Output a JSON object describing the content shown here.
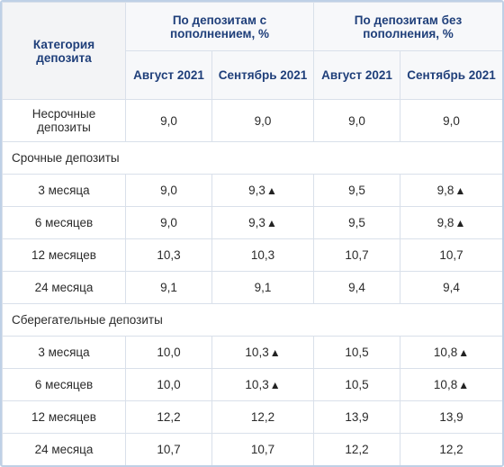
{
  "header": {
    "category": "Категория депозита",
    "group1": "По депозитам с пополнением, %",
    "group2": "По депозитам без пополнения, %",
    "g1_aug": "Август 2021",
    "g1_sep": "Сентябрь 2021",
    "g2_aug": "Август 2021",
    "g2_sep": "Сентябрь 2021"
  },
  "rows": {
    "nonterm": {
      "label": "Несрочные депозиты",
      "v1": "9,0",
      "v2": "9,0",
      "v3": "9,0",
      "v4": "9,0"
    },
    "term_title": "Срочные депозиты",
    "term": [
      {
        "label": "3 месяца",
        "v1": "9,0",
        "v2": "9,3",
        "v3": "9,5",
        "v4": "9,8"
      },
      {
        "label": "6 месяцев",
        "v1": "9,0",
        "v2": "9,3",
        "v3": "9,5",
        "v4": "9,8"
      },
      {
        "label": "12 месяцев",
        "v1": "10,3",
        "v2": "10,3",
        "v3": "10,7",
        "v4": "10,7"
      },
      {
        "label": "24 месяца",
        "v1": "9,1",
        "v2": "9,1",
        "v3": "9,4",
        "v4": "9,4"
      }
    ],
    "savings_title": "Сберегательные депозиты",
    "savings": [
      {
        "label": "3 месяца",
        "v1": "10,0",
        "v2": "10,3",
        "v3": "10,5",
        "v4": "10,8"
      },
      {
        "label": "6 месяцев",
        "v1": "10,0",
        "v2": "10,3",
        "v3": "10,5",
        "v4": "10,8"
      },
      {
        "label": "12 месяцев",
        "v1": "12,2",
        "v2": "12,2",
        "v3": "13,9",
        "v4": "13,9"
      },
      {
        "label": "24 месяца",
        "v1": "10,7",
        "v2": "10,7",
        "v3": "12,2",
        "v4": "12,2"
      }
    ]
  },
  "icons": {
    "increase": "up-triangle-icon"
  }
}
